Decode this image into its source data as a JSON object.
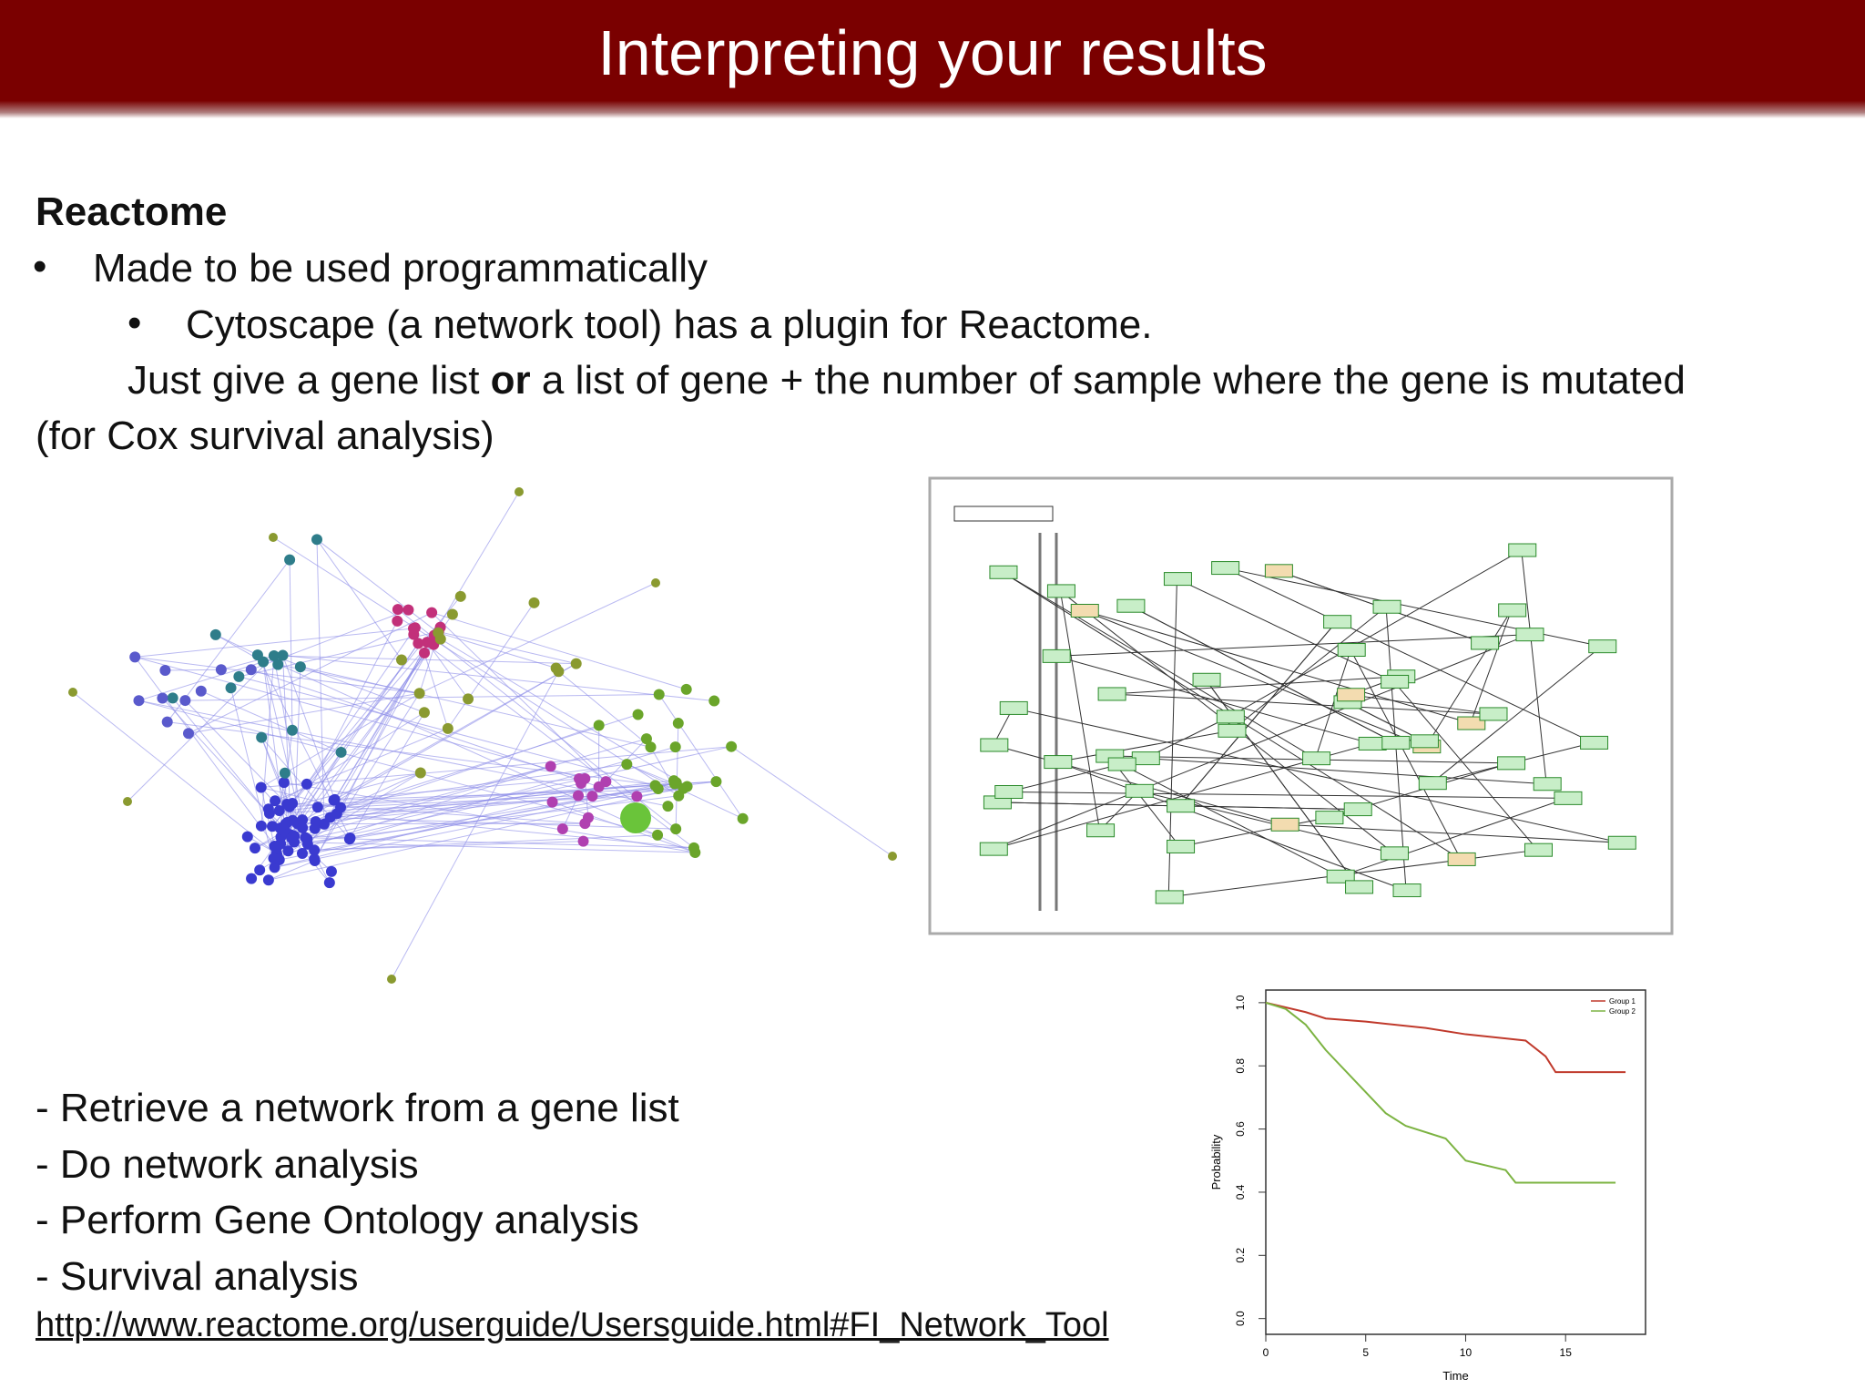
{
  "header": {
    "title": "Interpreting your results"
  },
  "body": {
    "heading": "Reactome",
    "bullets": [
      "Made to be used programmatically"
    ],
    "sub_bullets": [
      "Cytoscape (a network tool) has a plugin for Reactome."
    ],
    "paragraph": {
      "before": "Just give a gene list ",
      "bold": "or",
      "after": " a list of gene + the number of sample where the gene is mutated",
      "continuation": "(for Cox survival analysis)"
    },
    "features": [
      "- Retrieve a network from a gene list",
      "- Do network analysis",
      "- Perform Gene Ontology analysis",
      "- Survival analysis"
    ],
    "link": "http://www.reactome.org/userguide/Usersguide.html#FI_Network_Tool"
  },
  "survival_plot": {
    "type": "line",
    "xlabel": "Time",
    "ylabel": "Probability",
    "xlim": [
      0,
      19
    ],
    "ylim": [
      -0.05,
      1.04
    ],
    "xticks": [
      0,
      5,
      10,
      15
    ],
    "yticks": [
      {
        "value": 0,
        "label": "0.0"
      },
      {
        "value": 0.2,
        "label": "0.2"
      },
      {
        "value": 0.4,
        "label": "0.4"
      },
      {
        "value": 0.6,
        "label": "0.6"
      },
      {
        "value": 0.8,
        "label": "0.8"
      },
      {
        "value": 1,
        "label": "1.0"
      }
    ],
    "series": [
      {
        "name": "Group 1",
        "color": "#c0392b",
        "x": [
          0,
          2,
          3,
          5,
          8,
          10,
          13,
          14,
          14.5,
          18
        ],
        "values": [
          1,
          0.97,
          0.95,
          0.94,
          0.92,
          0.9,
          0.88,
          0.83,
          0.78,
          0.78
        ]
      },
      {
        "name": "Group 2",
        "color": "#7cb342",
        "x": [
          0,
          1,
          2,
          3,
          4.5,
          6,
          7,
          9,
          10,
          12,
          12.5,
          17.5
        ],
        "values": [
          1,
          0.98,
          0.93,
          0.85,
          0.75,
          0.65,
          0.61,
          0.57,
          0.5,
          0.47,
          0.43,
          0.43
        ]
      }
    ]
  }
}
